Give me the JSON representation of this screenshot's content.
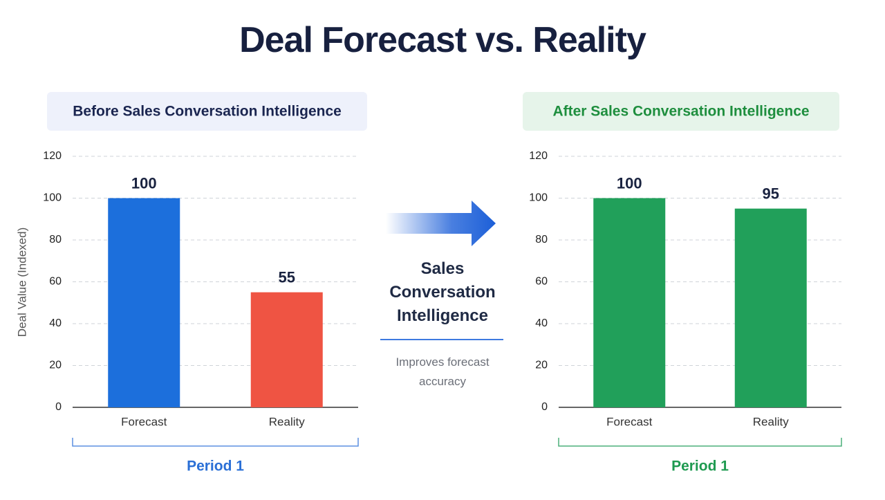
{
  "title": "Deal Forecast vs. Reality",
  "transition": {
    "label": "Sales Conversation Intelligence",
    "note": "Improves forecast accuracy"
  },
  "chart_data": [
    {
      "type": "bar",
      "title": "Before Sales Conversation Intelligence",
      "ylabel": "Deal Value (Indexed)",
      "categories": [
        "Forecast",
        "Reality"
      ],
      "values": [
        100,
        55
      ],
      "colors": [
        "#1c6fdc",
        "#ef5443"
      ],
      "ylim": [
        0,
        120
      ],
      "yticks": [
        0,
        20,
        40,
        60,
        80,
        100,
        120
      ],
      "grid": true,
      "group_label": "Period 1"
    },
    {
      "type": "bar",
      "title": "After Sales Conversation Intelligence",
      "categories": [
        "Forecast",
        "Reality"
      ],
      "values": [
        100,
        95
      ],
      "colors": [
        "#21a05a",
        "#21a05a"
      ],
      "ylim": [
        0,
        120
      ],
      "yticks": [
        0,
        20,
        40,
        60,
        80,
        100,
        120
      ],
      "grid": true,
      "group_label": "Period 1"
    }
  ]
}
